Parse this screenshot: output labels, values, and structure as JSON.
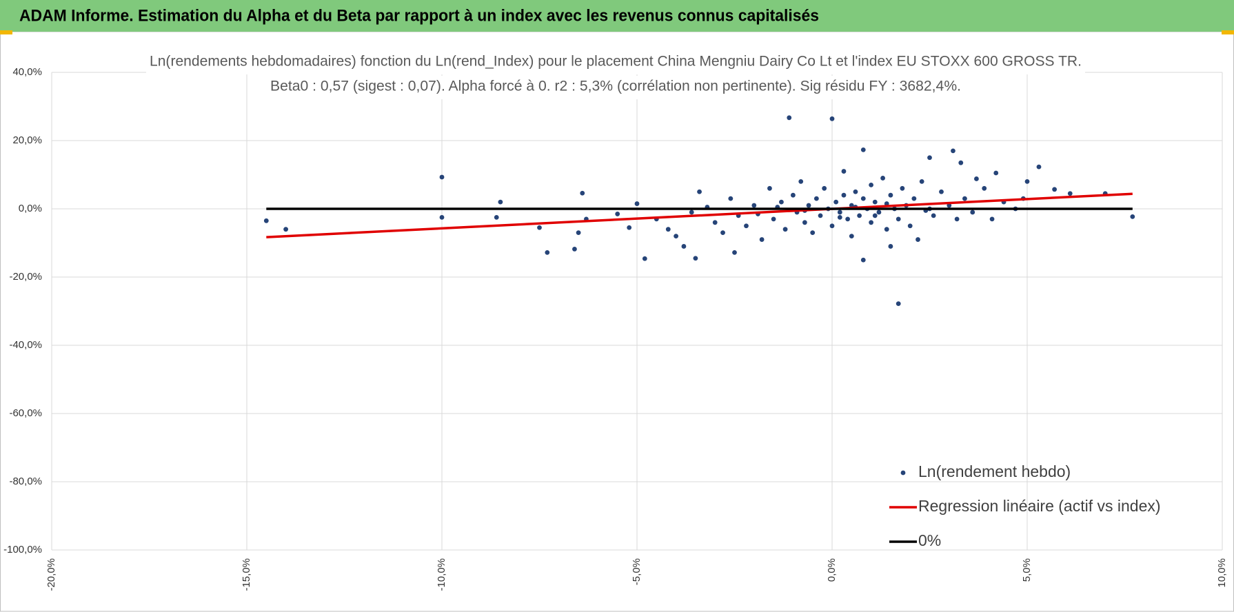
{
  "header": {
    "title": "ADAM Informe. Estimation du Alpha et du Beta par rapport à un index avec les revenus connus capitalisés"
  },
  "chart_data": {
    "type": "scatter",
    "title": "Ln(rendements hebdomadaires) fonction du Ln(rend_Index) pour le placement China Mengniu Dairy Co Lt et l'index EU STOXX 600 GROSS TR.",
    "subtitle": "Beta0 : 0,57 (sigest : 0,07).  Alpha forcé à 0. r2 : 5,3% (corrélation non pertinente). Sig résidu FY : 3682,4%.",
    "xlim": [
      -20,
      10
    ],
    "ylim": [
      -100,
      40
    ],
    "xticks": [
      {
        "value": -20,
        "label": "-20,0%"
      },
      {
        "value": -15,
        "label": "-15,0%"
      },
      {
        "value": -10,
        "label": "-10,0%"
      },
      {
        "value": -5,
        "label": "-5,0%"
      },
      {
        "value": 0,
        "label": "0,0%"
      },
      {
        "value": 5,
        "label": "5,0%"
      },
      {
        "value": 10,
        "label": "10,0%"
      }
    ],
    "yticks": [
      {
        "value": 40,
        "label": "40,0%"
      },
      {
        "value": 20,
        "label": "20,0%"
      },
      {
        "value": 0,
        "label": "0,0%"
      },
      {
        "value": -20,
        "label": "-20,0%"
      },
      {
        "value": -40,
        "label": "-40,0%"
      },
      {
        "value": -60,
        "label": "-60,0%"
      },
      {
        "value": -80,
        "label": "-80,0%"
      },
      {
        "value": -100,
        "label": "-100,0%"
      }
    ],
    "grid": true,
    "legend": "lower right",
    "series": [
      {
        "name": "Ln(rendement hebdo)",
        "type": "scatter",
        "color": "#264478",
        "x": [
          -14.5,
          -14,
          -10,
          -10,
          -8.5,
          -8.6,
          -7.5,
          -7.3,
          -6.6,
          -6.5,
          -6.4,
          -6.3,
          -5.5,
          -5.2,
          -4.8,
          -3.5,
          -2.5,
          -1.1,
          0,
          0.8,
          0.8,
          1.7,
          2.5,
          3.1,
          3.3,
          5.3,
          7.7,
          7,
          6.1,
          5.7,
          5,
          4.2,
          3.7,
          1.5,
          -5,
          -4.5,
          -4.2,
          -4,
          -3.8,
          -3.4,
          -3,
          -2.8,
          -2.6,
          -2.4,
          -2.2,
          -2,
          -1.8,
          -1.6,
          -1.5,
          -1.3,
          -1.2,
          -1,
          -0.9,
          -0.8,
          -0.7,
          -0.6,
          -0.5,
          -0.4,
          -0.3,
          -0.2,
          -0.1,
          0,
          0.1,
          0.2,
          0.3,
          0.3,
          0.4,
          0.5,
          0.5,
          0.6,
          0.7,
          0.8,
          0.9,
          1,
          1,
          1.1,
          1.2,
          1.3,
          1.4,
          1.5,
          1.6,
          1.7,
          1.8,
          1.9,
          2,
          2.1,
          2.2,
          2.3,
          2.5,
          2.6,
          2.8,
          3,
          3.2,
          3.4,
          3.6,
          3.9,
          4.1,
          4.4,
          4.7,
          4.9,
          -3.6,
          -3.2,
          -1.9,
          -0.7,
          0.6,
          1.4,
          2.4,
          -1.4,
          0.2,
          1.1
        ],
        "values": [
          -3.5,
          -6,
          9.3,
          -2.5,
          2,
          -2.5,
          -5.5,
          -12.8,
          -11.8,
          -7,
          4.6,
          -3,
          -1.5,
          -5.5,
          -14.6,
          -14.5,
          -12.8,
          26.7,
          26.4,
          17.3,
          -15,
          -27.8,
          15,
          17,
          13.5,
          12.3,
          -2.3,
          4.5,
          4.5,
          5.7,
          8,
          10.5,
          8.8,
          -11,
          1.5,
          -3,
          -6,
          -8,
          -11,
          5,
          -4,
          -7,
          3,
          -2,
          -5,
          1,
          -9,
          6,
          -3,
          2,
          -6,
          4,
          -1,
          8,
          -4,
          1,
          -7,
          3,
          -2,
          6,
          0,
          -5,
          2,
          -1,
          11,
          4,
          -3,
          1,
          -8,
          5,
          -2,
          3,
          0,
          -4,
          7,
          2,
          -1,
          9,
          -6,
          4,
          0,
          -3,
          6,
          1,
          -5,
          3,
          -9,
          8,
          0,
          -2,
          5,
          1,
          -3,
          3,
          -1,
          6,
          -3,
          2,
          0,
          3,
          -1,
          0.5,
          -1.5,
          -0.5,
          0.5,
          1.5,
          -0.5,
          0.5,
          -2.5,
          -2
        ]
      },
      {
        "name": "Regression linéaire (actif vs index)",
        "type": "line",
        "color": "#e00000",
        "x": [
          -14.5,
          7.7
        ],
        "values": [
          -8.3,
          4.4
        ]
      },
      {
        "name": "0%",
        "type": "line",
        "color": "#000000",
        "x": [
          -14.5,
          7.7
        ],
        "values": [
          0,
          0
        ]
      }
    ]
  }
}
